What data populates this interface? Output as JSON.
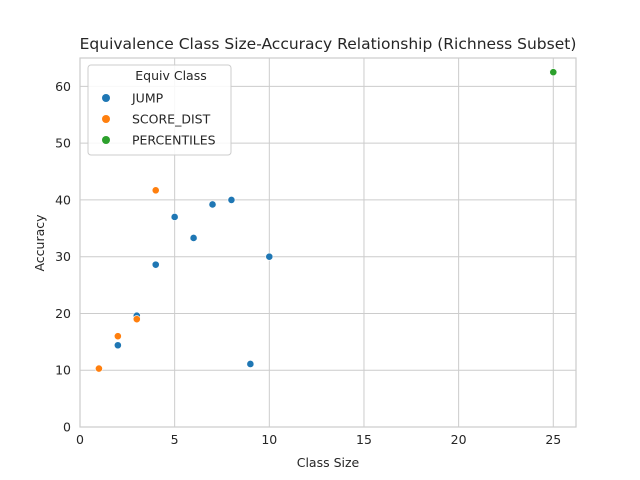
{
  "chart_data": {
    "type": "scatter",
    "title": "Equivalence Class Size-Accuracy Relationship (Richness Subset)",
    "xlabel": "Class Size",
    "ylabel": "Accuracy",
    "xlim": [
      0,
      26.2
    ],
    "ylim": [
      0,
      65
    ],
    "xticks": [
      0,
      5,
      10,
      15,
      20,
      25
    ],
    "yticks": [
      0,
      10,
      20,
      30,
      40,
      50,
      60
    ],
    "grid": true,
    "legend": {
      "title": "Equiv Class",
      "position": "top-left"
    },
    "series": [
      {
        "name": "JUMP",
        "color": "#1f77b4",
        "points": [
          [
            2,
            14.4
          ],
          [
            3,
            19.6
          ],
          [
            4,
            28.6
          ],
          [
            5,
            37.0
          ],
          [
            6,
            33.3
          ],
          [
            7,
            39.2
          ],
          [
            8,
            40.0
          ],
          [
            9,
            11.1
          ],
          [
            10,
            30.0
          ]
        ]
      },
      {
        "name": "SCORE_DIST",
        "color": "#ff7f0e",
        "points": [
          [
            1,
            10.3
          ],
          [
            2,
            16.0
          ],
          [
            3,
            19.0
          ],
          [
            4,
            41.7
          ]
        ]
      },
      {
        "name": "PERCENTILES",
        "color": "#2ca02c",
        "points": [
          [
            25,
            62.5
          ]
        ]
      }
    ]
  }
}
